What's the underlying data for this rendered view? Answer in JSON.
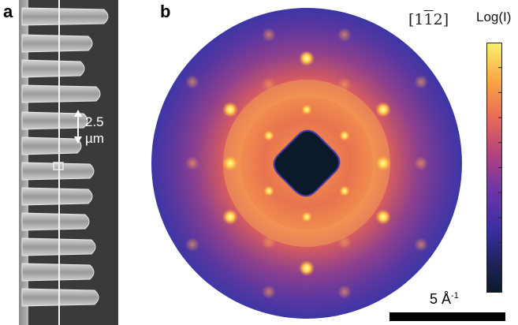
{
  "panels": {
    "a": {
      "label": "a",
      "scale_value": "2.5",
      "scale_unit": "µm"
    },
    "b": {
      "label": "b",
      "zone_axis_prefix": "[1",
      "zone_axis_bar": "1",
      "zone_axis_suffix": "2]",
      "colorbar_title": "Log(I)",
      "colormap": "plasma",
      "scale_value": "5 Å",
      "scale_exponent": "-1"
    }
  },
  "colors": {
    "sem_background": "#3a3a3a",
    "sem_bright": "#c9c9c9",
    "diffraction_low": "#3b3aa8",
    "diffraction_high": "#fff07a",
    "beamstop": "#0b1a2a"
  },
  "icons": [
    "double-arrow-icon"
  ]
}
